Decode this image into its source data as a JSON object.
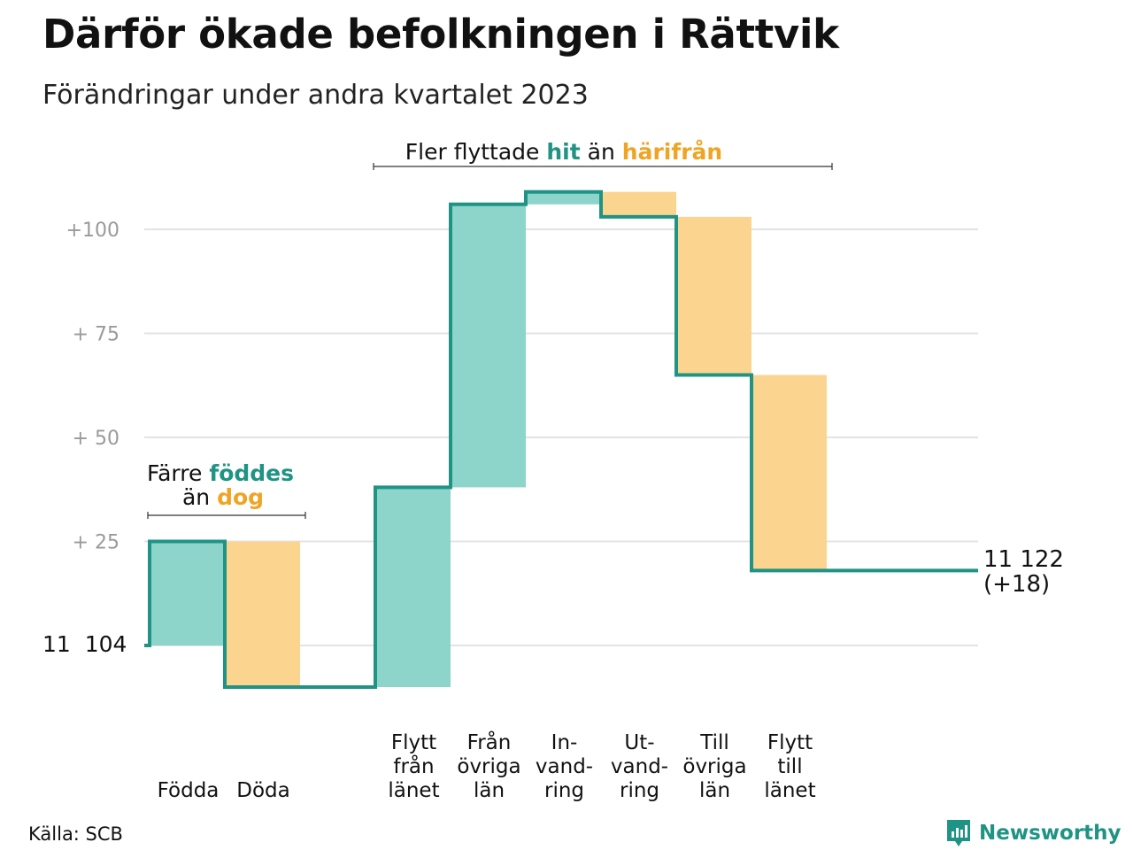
{
  "title": "Därför ökade befolkningen i Rättvik",
  "subtitle": "Förändringar under andra kvartalet 2023",
  "source": "Källa: SCB",
  "brand": {
    "name": "Newsworthy",
    "logo_icon": "newsworthy-bar-chart-icon"
  },
  "colors": {
    "increase": "#8dd4ca",
    "decrease": "#fbd58f",
    "line": "#1f9384",
    "accent_decrease": "#f0a424",
    "grid": "#e3e3e3",
    "tick": "#9a9a9a"
  },
  "annotations": {
    "top": {
      "pre": "Fler flyttade",
      "hit": "hit",
      "mid": "än",
      "harifran": "härifrån"
    },
    "left": {
      "pre": "Färre",
      "fodd": "föddes",
      "an": "än",
      "dog": "dog"
    }
  },
  "chart_data": {
    "type": "waterfall",
    "title": "Därför ökade befolkningen i Rättvik",
    "subtitle": "Förändringar under andra kvartalet 2023",
    "base": {
      "value": 11104,
      "label": "11  104"
    },
    "end": {
      "value": 11122,
      "label": "11 122",
      "change_label": "(+18)"
    },
    "ylim": [
      -10,
      110
    ],
    "yticks": [
      {
        "value": 100,
        "label": "+100"
      },
      {
        "value": 75,
        "label": "+  75"
      },
      {
        "value": 50,
        "label": "+  50"
      },
      {
        "value": 25,
        "label": "+  25"
      }
    ],
    "grid": true,
    "steps": [
      {
        "label_lines": [
          "Födda"
        ],
        "change": 25
      },
      {
        "label_lines": [
          "Döda"
        ],
        "change": -35
      },
      {
        "label_lines": [],
        "change": 0
      },
      {
        "label_lines": [
          "Flytt",
          "från",
          "länet"
        ],
        "change": 48
      },
      {
        "label_lines": [
          "Från",
          "övriga",
          "län"
        ],
        "change": 68
      },
      {
        "label_lines": [
          "In-",
          "vand-",
          "ring"
        ],
        "change": 3
      },
      {
        "label_lines": [
          "Ut-",
          "vand-",
          "ring"
        ],
        "change": -6
      },
      {
        "label_lines": [
          "Till",
          "övriga",
          "län"
        ],
        "change": -38
      },
      {
        "label_lines": [
          "Flytt",
          "till",
          "länet"
        ],
        "change": -47
      },
      {
        "label_lines": [],
        "change": 0
      }
    ]
  }
}
